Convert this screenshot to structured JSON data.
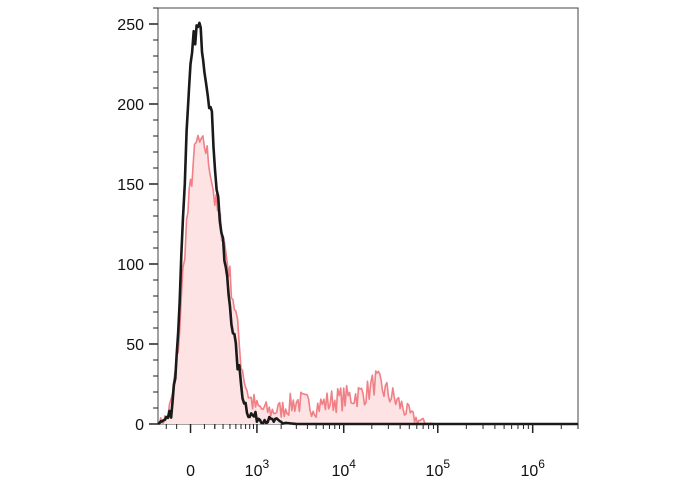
{
  "chart_data": {
    "type": "area",
    "title": "",
    "xlabel": "",
    "ylabel": "",
    "x_scale": "biexponential",
    "xlim": [
      -300,
      3000000
    ],
    "ylim": [
      0,
      260
    ],
    "grid": false,
    "legend": "none",
    "y_ticks": [
      {
        "value": 0,
        "label": "0"
      },
      {
        "value": 50,
        "label": "50"
      },
      {
        "value": 100,
        "label": "100"
      },
      {
        "value": 150,
        "label": "150"
      },
      {
        "value": 200,
        "label": "200"
      },
      {
        "value": 250,
        "label": "250"
      }
    ],
    "x_ticks": [
      {
        "value": 0,
        "base": "0",
        "exp": ""
      },
      {
        "value": 1000,
        "base": "10",
        "exp": "3"
      },
      {
        "value": 10000,
        "base": "10",
        "exp": "4"
      },
      {
        "value": 100000,
        "base": "10",
        "exp": "5"
      },
      {
        "value": 1000000,
        "base": "10",
        "exp": "6"
      }
    ],
    "series": [
      {
        "style": "filled",
        "color": "#f07f86",
        "fill": "#fde3e4",
        "points": [
          [
            -300,
            0
          ],
          [
            -200,
            4
          ],
          [
            -150,
            12
          ],
          [
            -100,
            38
          ],
          [
            -75,
            60
          ],
          [
            -50,
            95
          ],
          [
            -25,
            125
          ],
          [
            0,
            148
          ],
          [
            25,
            168
          ],
          [
            50,
            178
          ],
          [
            75,
            172
          ],
          [
            100,
            175
          ],
          [
            150,
            162
          ],
          [
            200,
            140
          ],
          [
            300,
            118
          ],
          [
            400,
            92
          ],
          [
            500,
            68
          ],
          [
            600,
            40
          ],
          [
            700,
            25
          ],
          [
            800,
            16
          ],
          [
            1000,
            10
          ],
          [
            1500,
            8
          ],
          [
            2000,
            9
          ],
          [
            3000,
            14
          ],
          [
            5000,
            11
          ],
          [
            8000,
            15
          ],
          [
            12000,
            17
          ],
          [
            18000,
            20
          ],
          [
            22000,
            27
          ],
          [
            26000,
            22
          ],
          [
            30000,
            19
          ],
          [
            40000,
            12
          ],
          [
            55000,
            4
          ],
          [
            70000,
            1
          ],
          [
            100000,
            0
          ],
          [
            3000000,
            0
          ]
        ]
      },
      {
        "style": "outline",
        "color": "#1a1a1a",
        "points": [
          [
            -300,
            0
          ],
          [
            -200,
            3
          ],
          [
            -150,
            8
          ],
          [
            -100,
            40
          ],
          [
            -75,
            80
          ],
          [
            -50,
            130
          ],
          [
            -25,
            180
          ],
          [
            0,
            220
          ],
          [
            20,
            240
          ],
          [
            40,
            246
          ],
          [
            60,
            248
          ],
          [
            80,
            238
          ],
          [
            100,
            225
          ],
          [
            130,
            210
          ],
          [
            170,
            190
          ],
          [
            220,
            150
          ],
          [
            300,
            110
          ],
          [
            400,
            75
          ],
          [
            500,
            45
          ],
          [
            600,
            25
          ],
          [
            700,
            12
          ],
          [
            800,
            6
          ],
          [
            1000,
            4
          ],
          [
            1500,
            2
          ],
          [
            2000,
            1
          ],
          [
            3000,
            0
          ],
          [
            3000000,
            0
          ]
        ]
      }
    ]
  }
}
